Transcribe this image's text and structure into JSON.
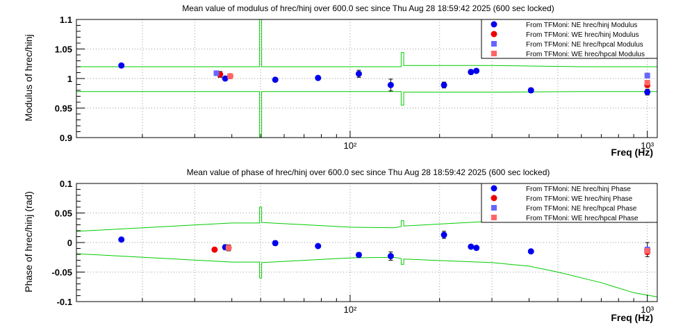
{
  "chart_data": [
    {
      "type": "scatter",
      "title": "Mean value of modulus of hrec/hinj over 600.0 sec since Thu Aug 28 18:59:42 2025 (600 sec locked)",
      "xlabel": "Freq (Hz)",
      "ylabel": "Modulus of hrec/hinj",
      "x_scale": "log",
      "xlim": [
        12,
        1080
      ],
      "ylim": [
        0.9,
        1.1
      ],
      "y_ticks": [
        0.9,
        0.95,
        1,
        1.05,
        1.1
      ],
      "y_tick_labels": [
        "0.9",
        "0.95",
        "1",
        "1.05",
        "1.1"
      ],
      "x_ticks": [
        100,
        1000
      ],
      "x_tick_labels": [
        "10²",
        "10³"
      ],
      "grid": true,
      "legend_position": "top-right",
      "series": [
        {
          "name": "From TFMoni: NE hrec/hinj Modulus",
          "marker": "circle",
          "color": "#0000ee",
          "points": [
            {
              "x": 17,
              "y": 1.022,
              "err": 0.002
            },
            {
              "x": 36.5,
              "y": 1.007,
              "err": 0.005
            },
            {
              "x": 38,
              "y": 1.0,
              "err": 0.003
            },
            {
              "x": 56,
              "y": 0.998,
              "err": 0.002
            },
            {
              "x": 78,
              "y": 1.001,
              "err": 0.002
            },
            {
              "x": 107,
              "y": 1.008,
              "err": 0.006
            },
            {
              "x": 137,
              "y": 0.989,
              "err": 0.01
            },
            {
              "x": 207,
              "y": 0.989,
              "err": 0.005
            },
            {
              "x": 255,
              "y": 1.011,
              "err": 0.004
            },
            {
              "x": 266,
              "y": 1.013,
              "err": 0.003
            },
            {
              "x": 406,
              "y": 0.98,
              "err": 0.004
            },
            {
              "x": 1000,
              "y": 0.977,
              "err": 0.005
            }
          ]
        },
        {
          "name": "From TFMoni: WE hrec/hinj Modulus",
          "marker": "circle",
          "color": "#ee0000",
          "points": [
            {
              "x": 36.5,
              "y": 1.007,
              "err": 0.004
            },
            {
              "x": 39.5,
              "y": 1.004,
              "err": 0.004
            },
            {
              "x": 1000,
              "y": 0.989,
              "err": 0.004
            }
          ]
        },
        {
          "name": "From TFMoni: NE hrec/hpcal Modulus",
          "marker": "square",
          "color": "#6666ff",
          "points": [
            {
              "x": 35.5,
              "y": 1.009,
              "err": 0.003
            },
            {
              "x": 1000,
              "y": 1.005,
              "err": 0.004
            }
          ]
        },
        {
          "name": "From TFMoni: WE hrec/hpcal Modulus",
          "marker": "square",
          "color": "#ff6666",
          "points": [
            {
              "x": 39.5,
              "y": 1.004,
              "err": 0.003
            },
            {
              "x": 1000,
              "y": 0.993,
              "err": 0.004
            }
          ]
        }
      ],
      "bands": {
        "color": "#00cc00",
        "upper": [
          [
            12,
            1.02
          ],
          [
            49.6,
            1.02
          ],
          [
            49.6,
            1.2
          ],
          [
            50.4,
            1.2
          ],
          [
            50.4,
            1.02
          ],
          [
            148.5,
            1.02
          ],
          [
            148.5,
            1.044
          ],
          [
            151.5,
            1.044
          ],
          [
            151.5,
            1.022
          ],
          [
            300,
            1.022
          ],
          [
            600,
            1.02
          ],
          [
            1080,
            1.02
          ]
        ],
        "lower": [
          [
            12,
            0.978
          ],
          [
            49.6,
            0.978
          ],
          [
            49.6,
            0.8
          ],
          [
            50.4,
            0.8
          ],
          [
            50.4,
            0.978
          ],
          [
            148.5,
            0.978
          ],
          [
            148.5,
            0.955
          ],
          [
            151.5,
            0.955
          ],
          [
            151.5,
            0.977
          ],
          [
            300,
            0.977
          ],
          [
            600,
            0.978
          ],
          [
            1080,
            0.978
          ]
        ]
      }
    },
    {
      "type": "scatter",
      "title": "Mean value of phase of hrec/hinj over 600.0 sec since Thu Aug 28 18:59:42 2025 (600 sec locked)",
      "xlabel": "Freq (Hz)",
      "ylabel": "Phase of hrec/hinj (rad)",
      "x_scale": "log",
      "xlim": [
        12,
        1080
      ],
      "ylim": [
        -0.1,
        0.1
      ],
      "y_ticks": [
        -0.1,
        -0.05,
        0,
        0.05,
        0.1
      ],
      "y_tick_labels": [
        "-0.1",
        "-0.05",
        "0",
        "0.05",
        "0.1"
      ],
      "x_ticks": [
        100,
        1000
      ],
      "x_tick_labels": [
        "10²",
        "10³"
      ],
      "grid": true,
      "legend_position": "top-right",
      "series": [
        {
          "name": "From TFMoni: NE hrec/hinj Phase",
          "marker": "circle",
          "color": "#0000ee",
          "points": [
            {
              "x": 17,
              "y": 0.005,
              "err": 0.002
            },
            {
              "x": 38,
              "y": -0.008,
              "err": 0.004
            },
            {
              "x": 56,
              "y": -0.001,
              "err": 0.004
            },
            {
              "x": 78,
              "y": -0.006,
              "err": 0.002
            },
            {
              "x": 107,
              "y": -0.021,
              "err": 0.004
            },
            {
              "x": 137,
              "y": -0.023,
              "err": 0.007
            },
            {
              "x": 207,
              "y": 0.013,
              "err": 0.006
            },
            {
              "x": 255,
              "y": -0.007,
              "err": 0.002
            },
            {
              "x": 266,
              "y": -0.009,
              "err": 0.002
            },
            {
              "x": 406,
              "y": -0.015,
              "err": 0.002
            },
            {
              "x": 1000,
              "y": -0.012,
              "err": 0.012
            }
          ]
        },
        {
          "name": "From TFMoni: WE hrec/hinj Phase",
          "marker": "circle",
          "color": "#ee0000",
          "points": [
            {
              "x": 35,
              "y": -0.012,
              "err": 0.002
            },
            {
              "x": 39,
              "y": -0.009,
              "err": 0.005
            },
            {
              "x": 1000,
              "y": -0.016,
              "err": 0.004
            }
          ]
        },
        {
          "name": "From TFMoni: NE hrec/hpcal Phase",
          "marker": "square",
          "color": "#6666ff",
          "points": [
            {
              "x": 1000,
              "y": -0.012,
              "err": 0.003
            }
          ]
        },
        {
          "name": "From TFMoni: WE hrec/hpcal Phase",
          "marker": "square",
          "color": "#ff6666",
          "points": [
            {
              "x": 39,
              "y": -0.009,
              "err": 0.003
            },
            {
              "x": 1000,
              "y": -0.014,
              "err": 0.003
            }
          ]
        }
      ],
      "bands": {
        "color": "#00cc00",
        "upper": [
          [
            12,
            0.019
          ],
          [
            40,
            0.033
          ],
          [
            49.6,
            0.033
          ],
          [
            49.6,
            0.06
          ],
          [
            50.4,
            0.06
          ],
          [
            50.4,
            0.034
          ],
          [
            100,
            0.026
          ],
          [
            140,
            0.025
          ],
          [
            148.5,
            0.027
          ],
          [
            148.5,
            0.037
          ],
          [
            151.5,
            0.037
          ],
          [
            151.5,
            0.028
          ],
          [
            300,
            0.036
          ],
          [
            1080,
            0.036
          ]
        ],
        "lower": [
          [
            12,
            -0.019
          ],
          [
            40,
            -0.033
          ],
          [
            49.6,
            -0.033
          ],
          [
            49.6,
            -0.06
          ],
          [
            50.4,
            -0.06
          ],
          [
            50.4,
            -0.034
          ],
          [
            100,
            -0.026
          ],
          [
            140,
            -0.025
          ],
          [
            148.5,
            -0.027
          ],
          [
            148.5,
            -0.037
          ],
          [
            151.5,
            -0.037
          ],
          [
            151.5,
            -0.028
          ],
          [
            300,
            -0.034
          ],
          [
            400,
            -0.04
          ],
          [
            500,
            -0.05
          ],
          [
            700,
            -0.068
          ],
          [
            900,
            -0.085
          ],
          [
            1080,
            -0.092
          ]
        ]
      }
    }
  ]
}
